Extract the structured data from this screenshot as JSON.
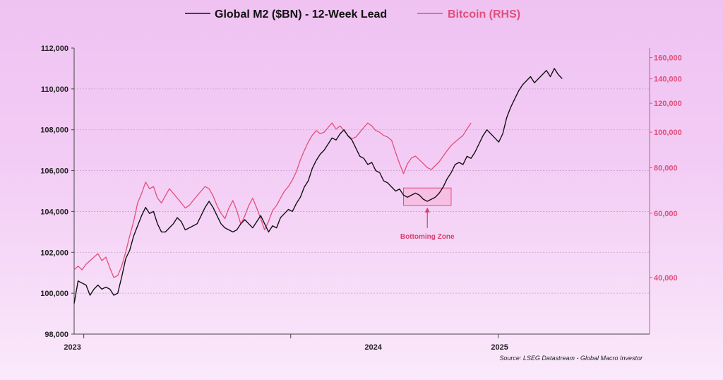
{
  "colors": {
    "m2": "#111111",
    "btc": "#e0507a",
    "zone_fill": "#f6b8dc",
    "zone_stroke": "#e0507a",
    "grid": "#c9a0c9"
  },
  "chart_data": {
    "type": "line",
    "xlabel": "",
    "ylabel": "",
    "grid": true,
    "legend_position": "top-center",
    "x_range": [
      "2022-12-15",
      "2025-09-25"
    ],
    "x_ticks": [
      "2023",
      "2024",
      "2025"
    ],
    "y_left": {
      "range": [
        98000,
        112000
      ],
      "ticks": [
        "98,000",
        "100,000",
        "102,000",
        "104,000",
        "106,000",
        "108,000",
        "110,000",
        "112,000"
      ]
    },
    "y_right": {
      "scale": "log",
      "range": [
        28000,
        170000
      ],
      "ticks": [
        "40,000",
        "60,000",
        "80,000",
        "100,000",
        "120,000",
        "140,000",
        "160,000"
      ]
    },
    "series": [
      {
        "name": "Global M2 ($BN) - 12-Week Lead",
        "axis": "left",
        "points": [
          [
            "2022-12-15",
            99500
          ],
          [
            "2022-12-22",
            100600
          ],
          [
            "2022-12-29",
            100500
          ],
          [
            "2023-01-05",
            100400
          ],
          [
            "2023-01-12",
            99900
          ],
          [
            "2023-01-19",
            100200
          ],
          [
            "2023-01-26",
            100400
          ],
          [
            "2023-02-02",
            100200
          ],
          [
            "2023-02-09",
            100300
          ],
          [
            "2023-02-16",
            100200
          ],
          [
            "2023-02-23",
            99900
          ],
          [
            "2023-03-02",
            100000
          ],
          [
            "2023-03-09",
            100800
          ],
          [
            "2023-03-16",
            101700
          ],
          [
            "2023-03-23",
            102100
          ],
          [
            "2023-03-30",
            102800
          ],
          [
            "2023-04-06",
            103300
          ],
          [
            "2023-04-13",
            103800
          ],
          [
            "2023-04-20",
            104200
          ],
          [
            "2023-04-27",
            103900
          ],
          [
            "2023-05-04",
            104000
          ],
          [
            "2023-05-11",
            103400
          ],
          [
            "2023-05-18",
            103000
          ],
          [
            "2023-05-25",
            103000
          ],
          [
            "2023-06-01",
            103200
          ],
          [
            "2023-06-08",
            103400
          ],
          [
            "2023-06-15",
            103700
          ],
          [
            "2023-06-22",
            103500
          ],
          [
            "2023-06-29",
            103100
          ],
          [
            "2023-07-06",
            103200
          ],
          [
            "2023-07-13",
            103300
          ],
          [
            "2023-07-20",
            103400
          ],
          [
            "2023-07-27",
            103800
          ],
          [
            "2023-08-03",
            104200
          ],
          [
            "2023-08-10",
            104500
          ],
          [
            "2023-08-17",
            104200
          ],
          [
            "2023-08-24",
            103800
          ],
          [
            "2023-08-31",
            103400
          ],
          [
            "2023-09-07",
            103200
          ],
          [
            "2023-09-14",
            103100
          ],
          [
            "2023-09-21",
            103000
          ],
          [
            "2023-09-28",
            103100
          ],
          [
            "2023-10-05",
            103400
          ],
          [
            "2023-10-12",
            103600
          ],
          [
            "2023-10-19",
            103400
          ],
          [
            "2023-10-26",
            103200
          ],
          [
            "2023-11-02",
            103500
          ],
          [
            "2023-11-09",
            103800
          ],
          [
            "2023-11-16",
            103400
          ],
          [
            "2023-11-23",
            103000
          ],
          [
            "2023-11-30",
            103300
          ],
          [
            "2023-12-07",
            103200
          ],
          [
            "2023-12-14",
            103700
          ],
          [
            "2023-12-21",
            103900
          ],
          [
            "2023-12-28",
            104100
          ],
          [
            "2024-01-04",
            104000
          ],
          [
            "2024-01-11",
            104400
          ],
          [
            "2024-01-18",
            104700
          ],
          [
            "2024-01-25",
            105200
          ],
          [
            "2024-02-01",
            105500
          ],
          [
            "2024-02-08",
            106100
          ],
          [
            "2024-02-15",
            106500
          ],
          [
            "2024-02-22",
            106800
          ],
          [
            "2024-02-29",
            107000
          ],
          [
            "2024-03-07",
            107300
          ],
          [
            "2024-03-14",
            107600
          ],
          [
            "2024-03-21",
            107500
          ],
          [
            "2024-03-28",
            107800
          ],
          [
            "2024-04-04",
            108000
          ],
          [
            "2024-04-11",
            107700
          ],
          [
            "2024-04-18",
            107500
          ],
          [
            "2024-04-25",
            107100
          ],
          [
            "2024-05-02",
            106700
          ],
          [
            "2024-05-09",
            106600
          ],
          [
            "2024-05-16",
            106300
          ],
          [
            "2024-05-23",
            106400
          ],
          [
            "2024-05-30",
            106000
          ],
          [
            "2024-06-06",
            105900
          ],
          [
            "2024-06-13",
            105500
          ],
          [
            "2024-06-20",
            105400
          ],
          [
            "2024-06-27",
            105200
          ],
          [
            "2024-07-04",
            105000
          ],
          [
            "2024-07-11",
            105100
          ],
          [
            "2024-07-18",
            104800
          ],
          [
            "2024-07-25",
            104700
          ],
          [
            "2024-08-01",
            104800
          ],
          [
            "2024-08-08",
            104900
          ],
          [
            "2024-08-15",
            104800
          ],
          [
            "2024-08-22",
            104600
          ],
          [
            "2024-08-29",
            104500
          ],
          [
            "2024-09-05",
            104600
          ],
          [
            "2024-09-12",
            104700
          ],
          [
            "2024-09-19",
            104900
          ],
          [
            "2024-09-26",
            105200
          ],
          [
            "2024-10-03",
            105600
          ],
          [
            "2024-10-10",
            105900
          ],
          [
            "2024-10-17",
            106300
          ],
          [
            "2024-10-24",
            106400
          ],
          [
            "2024-10-31",
            106300
          ],
          [
            "2024-11-07",
            106700
          ],
          [
            "2024-11-14",
            106600
          ],
          [
            "2024-11-21",
            106900
          ],
          [
            "2024-11-28",
            107300
          ],
          [
            "2024-12-05",
            107700
          ],
          [
            "2024-12-12",
            108000
          ],
          [
            "2024-12-19",
            107800
          ],
          [
            "2024-12-26",
            107600
          ],
          [
            "2025-01-02",
            107400
          ],
          [
            "2025-01-09",
            107800
          ],
          [
            "2025-01-16",
            108600
          ],
          [
            "2025-01-23",
            109100
          ],
          [
            "2025-01-30",
            109500
          ],
          [
            "2025-02-06",
            109900
          ],
          [
            "2025-02-13",
            110200
          ],
          [
            "2025-02-20",
            110400
          ],
          [
            "2025-02-27",
            110600
          ],
          [
            "2025-03-06",
            110300
          ],
          [
            "2025-03-13",
            110500
          ],
          [
            "2025-03-20",
            110700
          ],
          [
            "2025-03-27",
            110900
          ],
          [
            "2025-04-03",
            110600
          ],
          [
            "2025-04-10",
            111000
          ],
          [
            "2025-04-17",
            110700
          ],
          [
            "2025-04-24",
            110500
          ]
        ]
      },
      {
        "name": "Bitcoin (RHS)",
        "axis": "right",
        "points": [
          [
            "2022-12-15",
            42000
          ],
          [
            "2022-12-22",
            43000
          ],
          [
            "2022-12-29",
            42000
          ],
          [
            "2023-01-05",
            43500
          ],
          [
            "2023-01-12",
            44500
          ],
          [
            "2023-01-19",
            45500
          ],
          [
            "2023-01-26",
            46500
          ],
          [
            "2023-02-02",
            44500
          ],
          [
            "2023-02-09",
            45500
          ],
          [
            "2023-02-16",
            42500
          ],
          [
            "2023-02-23",
            40000
          ],
          [
            "2023-03-02",
            40500
          ],
          [
            "2023-03-09",
            43000
          ],
          [
            "2023-03-16",
            47000
          ],
          [
            "2023-03-23",
            52000
          ],
          [
            "2023-03-30",
            57000
          ],
          [
            "2023-04-06",
            64000
          ],
          [
            "2023-04-13",
            68000
          ],
          [
            "2023-04-20",
            73000
          ],
          [
            "2023-04-27",
            70000
          ],
          [
            "2023-05-04",
            71000
          ],
          [
            "2023-05-11",
            66000
          ],
          [
            "2023-05-18",
            64000
          ],
          [
            "2023-05-25",
            67000
          ],
          [
            "2023-06-01",
            70000
          ],
          [
            "2023-06-08",
            68000
          ],
          [
            "2023-06-15",
            66000
          ],
          [
            "2023-06-22",
            64000
          ],
          [
            "2023-06-29",
            62000
          ],
          [
            "2023-07-06",
            63000
          ],
          [
            "2023-07-13",
            65000
          ],
          [
            "2023-07-20",
            67000
          ],
          [
            "2023-07-27",
            69000
          ],
          [
            "2023-08-03",
            71000
          ],
          [
            "2023-08-10",
            70000
          ],
          [
            "2023-08-17",
            67000
          ],
          [
            "2023-08-24",
            63000
          ],
          [
            "2023-08-31",
            60000
          ],
          [
            "2023-09-07",
            58000
          ],
          [
            "2023-09-14",
            62000
          ],
          [
            "2023-09-21",
            65000
          ],
          [
            "2023-09-28",
            61000
          ],
          [
            "2023-10-05",
            56000
          ],
          [
            "2023-10-12",
            59000
          ],
          [
            "2023-10-19",
            63000
          ],
          [
            "2023-10-26",
            66000
          ],
          [
            "2023-11-02",
            62000
          ],
          [
            "2023-11-09",
            58000
          ],
          [
            "2023-11-16",
            54000
          ],
          [
            "2023-11-23",
            57000
          ],
          [
            "2023-11-30",
            61000
          ],
          [
            "2023-12-07",
            63000
          ],
          [
            "2023-12-14",
            66000
          ],
          [
            "2023-12-21",
            69000
          ],
          [
            "2023-12-28",
            71000
          ],
          [
            "2024-01-04",
            74000
          ],
          [
            "2024-01-11",
            78000
          ],
          [
            "2024-01-18",
            84000
          ],
          [
            "2024-01-25",
            89000
          ],
          [
            "2024-02-01",
            94000
          ],
          [
            "2024-02-08",
            98000
          ],
          [
            "2024-02-15",
            101000
          ],
          [
            "2024-02-22",
            99000
          ],
          [
            "2024-02-29",
            100000
          ],
          [
            "2024-03-07",
            103000
          ],
          [
            "2024-03-14",
            106000
          ],
          [
            "2024-03-21",
            102000
          ],
          [
            "2024-03-28",
            104000
          ],
          [
            "2024-04-04",
            101000
          ],
          [
            "2024-04-11",
            98000
          ],
          [
            "2024-04-18",
            96000
          ],
          [
            "2024-04-25",
            97000
          ],
          [
            "2024-05-02",
            100000
          ],
          [
            "2024-05-09",
            103000
          ],
          [
            "2024-05-16",
            106000
          ],
          [
            "2024-05-23",
            104000
          ],
          [
            "2024-05-30",
            101000
          ],
          [
            "2024-06-06",
            100000
          ],
          [
            "2024-06-13",
            98000
          ],
          [
            "2024-06-20",
            97000
          ],
          [
            "2024-06-27",
            95000
          ],
          [
            "2024-07-04",
            88000
          ],
          [
            "2024-07-11",
            82000
          ],
          [
            "2024-07-18",
            77000
          ],
          [
            "2024-07-25",
            82000
          ],
          [
            "2024-08-01",
            85000
          ],
          [
            "2024-08-08",
            86000
          ],
          [
            "2024-08-15",
            84000
          ],
          [
            "2024-08-22",
            82000
          ],
          [
            "2024-08-29",
            80000
          ],
          [
            "2024-09-05",
            79000
          ],
          [
            "2024-09-12",
            81000
          ],
          [
            "2024-09-19",
            83000
          ],
          [
            "2024-09-26",
            86000
          ],
          [
            "2024-10-03",
            89000
          ],
          [
            "2024-10-10",
            92000
          ],
          [
            "2024-10-17",
            94000
          ],
          [
            "2024-10-24",
            96000
          ],
          [
            "2024-10-31",
            98000
          ],
          [
            "2024-11-07",
            102000
          ],
          [
            "2024-11-14",
            106000
          ]
        ]
      }
    ],
    "annotations": [
      {
        "text": "Bottoming Zone",
        "x_range": [
          "2024-07-18",
          "2024-10-10"
        ],
        "y_range": [
          104300,
          105150
        ]
      }
    ]
  },
  "legend": {
    "m2_label": "Global M2 ($BN) - 12-Week Lead",
    "btc_label": "Bitcoin (RHS)"
  },
  "annotation_text": "Bottoming Zone",
  "source": "Source: LSEG Datastream - Global Macro Investor"
}
